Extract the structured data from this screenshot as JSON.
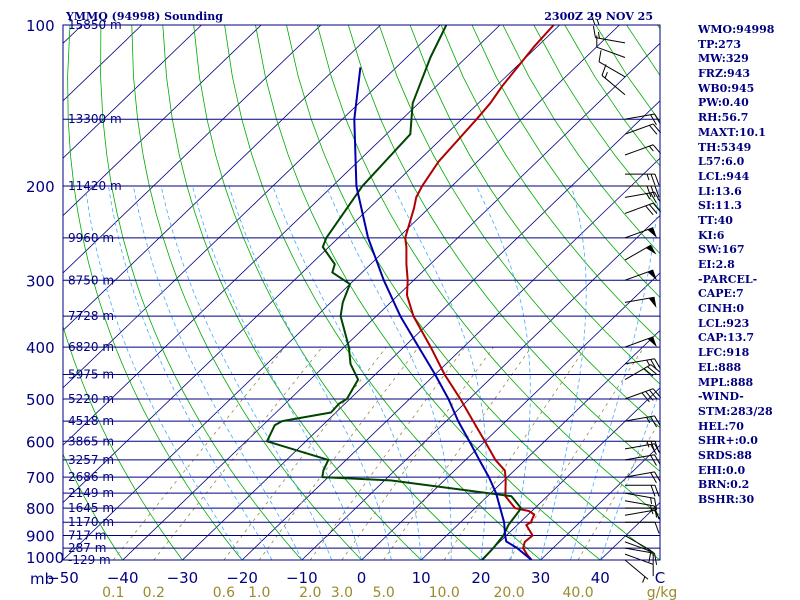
{
  "title": {
    "left": "YMMQ (94998) Sounding",
    "right": "2300Z 29 NOV 25"
  },
  "colors": {
    "frame": "#000080",
    "temperature": "#b00000",
    "dewpoint": "#004400",
    "parcel": "#0000aa",
    "dry_adiabat": "#00aa00",
    "moist_adiabat": "#44aaff",
    "mixing_ratio": "#998844",
    "wind": "#000000"
  },
  "chart_data": {
    "type": "skew-t",
    "pressure_ticks": [
      "100",
      "200",
      "300",
      "400",
      "500",
      "600",
      "700",
      "800",
      "900",
      "1000"
    ],
    "pressure_axis_label": "mb",
    "temperature_ticks": [
      "-50",
      "-40",
      "-30",
      "-20",
      "-10",
      "0",
      "10",
      "20",
      "30",
      "40",
      "C"
    ],
    "temperature_range_c": [
      -50,
      50
    ],
    "pressure_range_mb": [
      1000,
      100
    ],
    "mixing_ratio_labels": [
      "0.1",
      "0.2",
      "0.6",
      "1.0",
      "2.0",
      "3.0",
      "5.0",
      "10.0",
      "20.0",
      "40.0",
      "g/kg"
    ],
    "height_levels": [
      {
        "p": 100,
        "label": "15850 m"
      },
      {
        "p": 150,
        "label": "13300 m"
      },
      {
        "p": 200,
        "label": "11420 m"
      },
      {
        "p": 250,
        "label": "9960 m"
      },
      {
        "p": 300,
        "label": "8750 m"
      },
      {
        "p": 350,
        "label": "7728 m"
      },
      {
        "p": 400,
        "label": "6820 m"
      },
      {
        "p": 450,
        "label": "5975 m"
      },
      {
        "p": 500,
        "label": "5220 m"
      },
      {
        "p": 550,
        "label": "4518 m"
      },
      {
        "p": 600,
        "label": "3865 m"
      },
      {
        "p": 650,
        "label": "3257 m"
      },
      {
        "p": 700,
        "label": "2686 m"
      },
      {
        "p": 750,
        "label": "2149 m"
      },
      {
        "p": 800,
        "label": "1645 m"
      },
      {
        "p": 850,
        "label": "1170 m"
      },
      {
        "p": 900,
        "label": "717 m"
      },
      {
        "p": 950,
        "label": "287 m"
      },
      {
        "p": 1000,
        "label": "-129 m"
      }
    ],
    "series": [
      {
        "name": "temperature",
        "points": [
          [
            1000,
            28.5
          ],
          [
            980,
            27.0
          ],
          [
            950,
            25.0
          ],
          [
            925,
            24.2
          ],
          [
            900,
            24.4
          ],
          [
            860,
            21.5
          ],
          [
            850,
            21.8
          ],
          [
            822,
            21.0
          ],
          [
            810,
            19.5
          ],
          [
            800,
            16.7
          ],
          [
            760,
            13.0
          ],
          [
            705,
            10.0
          ],
          [
            680,
            8.4
          ],
          [
            650,
            5.0
          ],
          [
            600,
            0.0
          ],
          [
            550,
            -5.5
          ],
          [
            500,
            -11.5
          ],
          [
            450,
            -18.4
          ],
          [
            400,
            -25.5
          ],
          [
            350,
            -33.8
          ],
          [
            320,
            -38.5
          ],
          [
            300,
            -41.0
          ],
          [
            280,
            -44.0
          ],
          [
            260,
            -47.0
          ],
          [
            250,
            -48.8
          ],
          [
            220,
            -52.5
          ],
          [
            210,
            -54.0
          ],
          [
            200,
            -55.0
          ],
          [
            180,
            -56.5
          ],
          [
            150,
            -57.5
          ],
          [
            140,
            -58.0
          ],
          [
            130,
            -59.0
          ],
          [
            110,
            -60.5
          ],
          [
            100,
            -61.0
          ]
        ]
      },
      {
        "name": "dewpoint",
        "points": [
          [
            1000,
            20.2
          ],
          [
            950,
            20.0
          ],
          [
            900,
            19.5
          ],
          [
            860,
            18.5
          ],
          [
            820,
            18.0
          ],
          [
            800,
            17.7
          ],
          [
            760,
            14.0
          ],
          [
            710,
            -9.0
          ],
          [
            700,
            -21.0
          ],
          [
            680,
            -22.0
          ],
          [
            650,
            -23.0
          ],
          [
            600,
            -36.5
          ],
          [
            560,
            -38.0
          ],
          [
            550,
            -37.5
          ],
          [
            530,
            -30.8
          ],
          [
            510,
            -31.0
          ],
          [
            500,
            -30.5
          ],
          [
            460,
            -32.0
          ],
          [
            430,
            -36.0
          ],
          [
            400,
            -39.2
          ],
          [
            350,
            -46.0
          ],
          [
            330,
            -48.0
          ],
          [
            305,
            -50.0
          ],
          [
            290,
            -55.0
          ],
          [
            280,
            -56.0
          ],
          [
            260,
            -61.0
          ],
          [
            250,
            -62.0
          ],
          [
            200,
            -65.0
          ],
          [
            160,
            -66.0
          ],
          [
            140,
            -71.0
          ],
          [
            115,
            -76.0
          ],
          [
            100,
            -79.0
          ]
        ]
      },
      {
        "name": "parcel",
        "points": [
          [
            1000,
            28.5
          ],
          [
            950,
            24.0
          ],
          [
            923,
            21.0
          ],
          [
            900,
            19.8
          ],
          [
            850,
            17.3
          ],
          [
            800,
            14.2
          ],
          [
            750,
            10.9
          ],
          [
            700,
            6.9
          ],
          [
            650,
            2.3
          ],
          [
            600,
            -2.6
          ],
          [
            550,
            -8.0
          ],
          [
            500,
            -13.5
          ],
          [
            450,
            -20.0
          ],
          [
            400,
            -27.5
          ],
          [
            350,
            -36.0
          ],
          [
            300,
            -45.0
          ],
          [
            250,
            -55.0
          ],
          [
            200,
            -66.0
          ],
          [
            150,
            -78.0
          ],
          [
            120,
            -86.0
          ]
        ]
      }
    ],
    "wind_barbs": [
      {
        "p": 1000,
        "dir": 130,
        "kt": 5
      },
      {
        "p": 975,
        "dir": 110,
        "kt": 10
      },
      {
        "p": 950,
        "dir": 100,
        "kt": 10
      },
      {
        "p": 925,
        "dir": 110,
        "kt": 10
      },
      {
        "p": 900,
        "dir": 120,
        "kt": 10
      },
      {
        "p": 850,
        "dir": 90,
        "kt": 10
      },
      {
        "p": 825,
        "dir": 80,
        "kt": 10
      },
      {
        "p": 800,
        "dir": 90,
        "kt": 15
      },
      {
        "p": 775,
        "dir": 100,
        "kt": 15
      },
      {
        "p": 750,
        "dir": 100,
        "kt": 15
      },
      {
        "p": 725,
        "dir": 90,
        "kt": 20
      },
      {
        "p": 700,
        "dir": 80,
        "kt": 20
      },
      {
        "p": 650,
        "dir": 80,
        "kt": 20
      },
      {
        "p": 620,
        "dir": 80,
        "kt": 20
      },
      {
        "p": 600,
        "dir": 90,
        "kt": 25
      },
      {
        "p": 550,
        "dir": 80,
        "kt": 25
      },
      {
        "p": 500,
        "dir": 70,
        "kt": 40
      },
      {
        "p": 460,
        "dir": 60,
        "kt": 30
      },
      {
        "p": 430,
        "dir": 80,
        "kt": 25
      },
      {
        "p": 400,
        "dir": 70,
        "kt": 50
      },
      {
        "p": 330,
        "dir": 80,
        "kt": 50
      },
      {
        "p": 300,
        "dir": 70,
        "kt": 50
      },
      {
        "p": 275,
        "dir": 60,
        "kt": 50
      },
      {
        "p": 250,
        "dir": 70,
        "kt": 50
      },
      {
        "p": 225,
        "dir": 70,
        "kt": 30
      },
      {
        "p": 210,
        "dir": 80,
        "kt": 25
      },
      {
        "p": 200,
        "dir": 90,
        "kt": 30
      },
      {
        "p": 190,
        "dir": 90,
        "kt": 25
      },
      {
        "p": 175,
        "dir": 70,
        "kt": 15
      },
      {
        "p": 160,
        "dir": 70,
        "kt": 20
      },
      {
        "p": 150,
        "dir": 80,
        "kt": 20
      },
      {
        "p": 135,
        "dir": 310,
        "kt": 15
      },
      {
        "p": 125,
        "dir": 300,
        "kt": 10
      },
      {
        "p": 115,
        "dir": 290,
        "kt": 10
      },
      {
        "p": 108,
        "dir": 280,
        "kt": 15
      },
      {
        "p": 100,
        "dir": 270,
        "kt": 15
      }
    ]
  },
  "indices": [
    "WMO:94998",
    "TP:273",
    "MW:329",
    "FRZ:943",
    "WB0:945",
    "PW:0.40",
    "RH:56.7",
    "MAXT:10.1",
    "TH:5349",
    "L57:6.0",
    "LCL:944",
    "LI:13.6",
    "SI:11.3",
    "TT:40",
    "KI:6",
    "SW:167",
    "EI:2.8",
    "-PARCEL-",
    "CAPE:7",
    "CINH:0",
    "LCL:923",
    "CAP:13.7",
    "LFC:918",
    "EL:888",
    "MPL:888",
    "-WIND-",
    "STM:283/28",
    "HEL:70",
    "SHR+:0.0",
    "SRDS:88",
    "EHI:0.0",
    "BRN:0.2",
    "BSHR:30"
  ]
}
